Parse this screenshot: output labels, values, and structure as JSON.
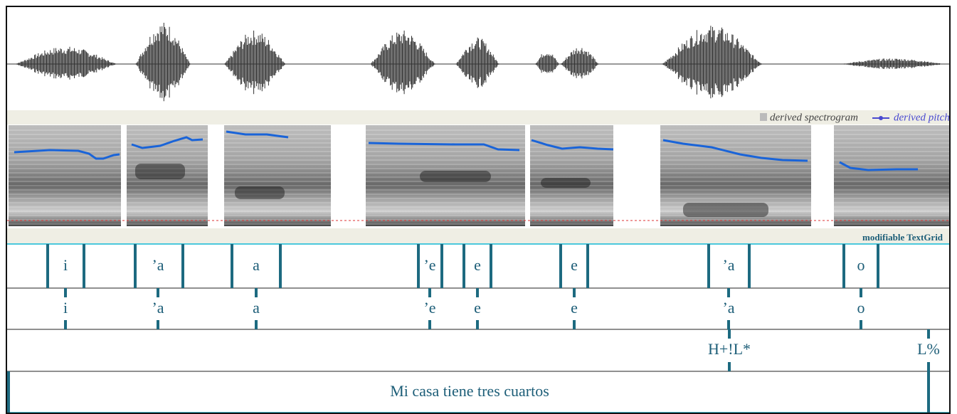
{
  "spectrogram_legend": "derived spectrogram",
  "pitch_legend": "derived pitch",
  "textgrid_label": "modifiable TextGrid",
  "tiers": [
    {
      "labels": [
        "i",
        "’a",
        "a",
        "’e",
        "e",
        "e",
        "’a",
        "o"
      ]
    },
    {
      "labels": [
        "i",
        "’a",
        "a",
        "’e",
        "e",
        "e",
        "’a",
        "o"
      ]
    },
    {
      "labels": [
        "H+!L*",
        "L%"
      ]
    },
    {
      "labels": [
        "Mi casa tiene tres cuartos"
      ]
    }
  ]
}
